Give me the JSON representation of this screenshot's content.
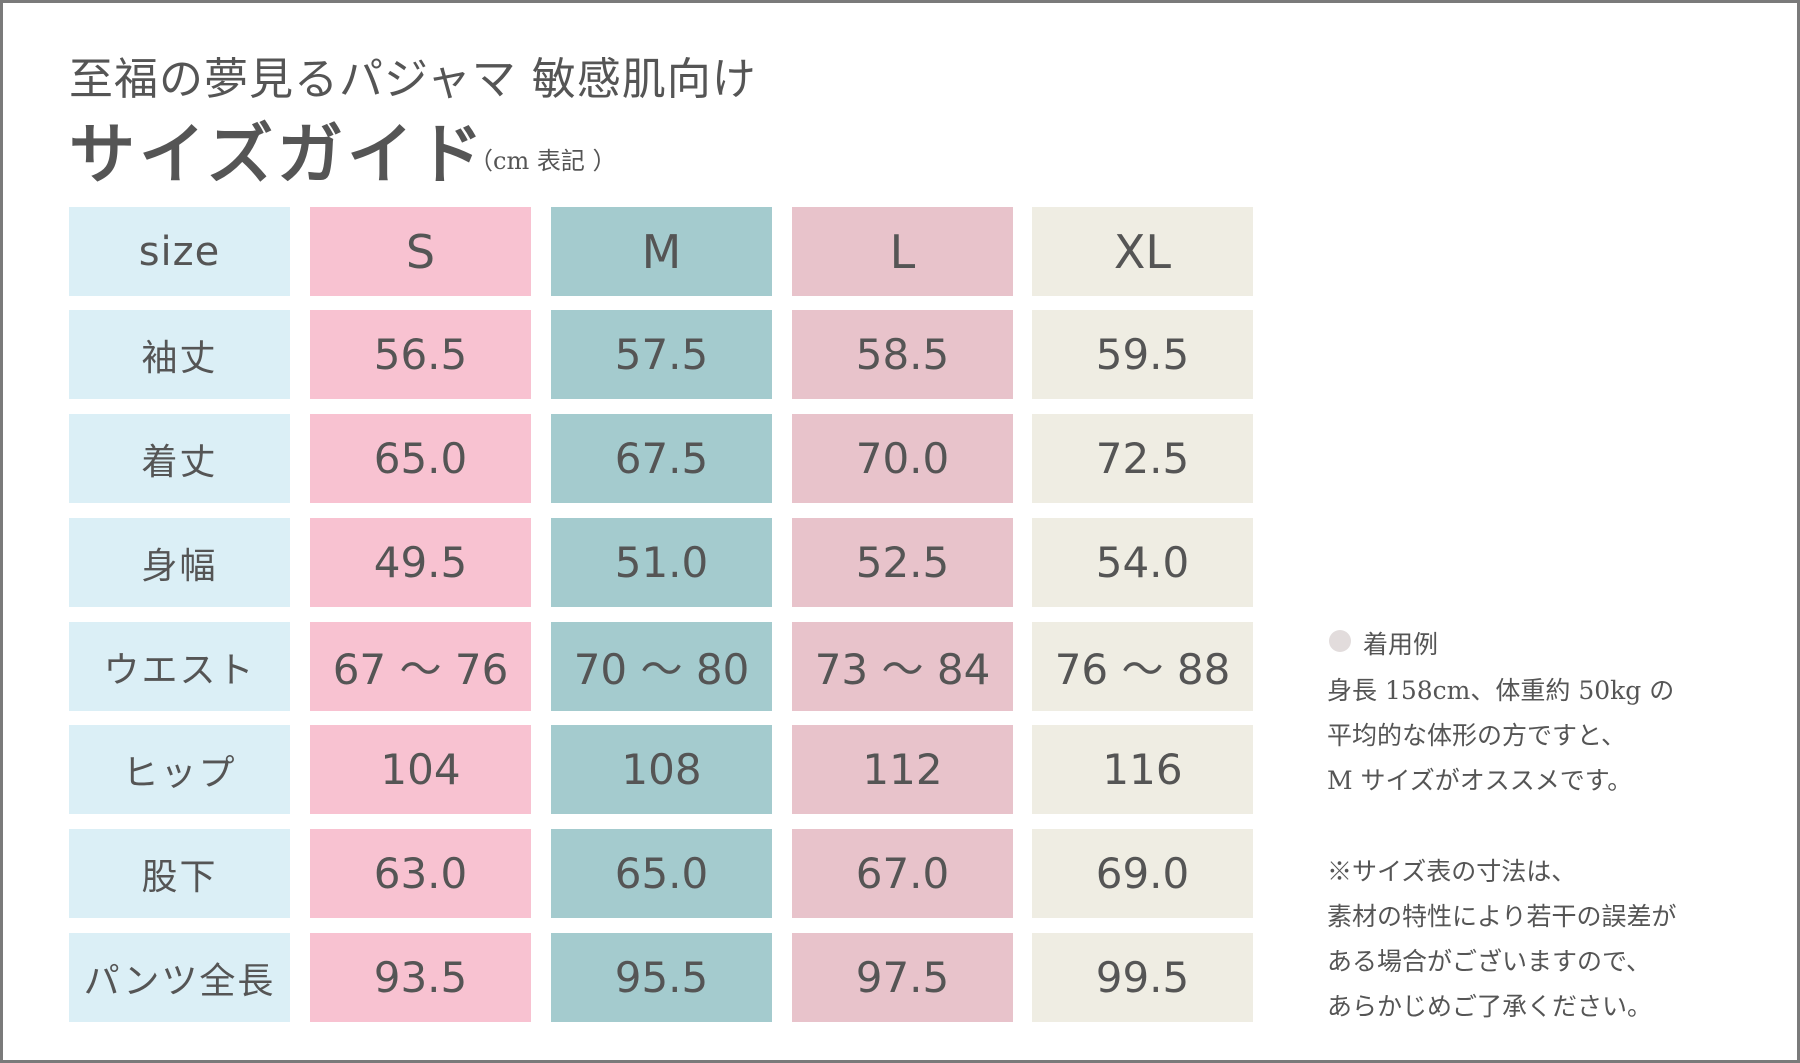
{
  "header": {
    "subtitle": "至福の夢見るパジャマ 敏感肌向け",
    "title": "サイズガイド",
    "unit_note": "（cm 表記 ）"
  },
  "table": {
    "columns": [
      "size",
      "S",
      "M",
      "L",
      "XL"
    ],
    "rows": [
      {
        "label": "袖丈",
        "values": [
          "56.5",
          "57.5",
          "58.5",
          "59.5"
        ]
      },
      {
        "label": "着丈",
        "values": [
          "65.0",
          "67.5",
          "70.0",
          "72.5"
        ]
      },
      {
        "label": "身幅",
        "values": [
          "49.5",
          "51.0",
          "52.5",
          "54.0"
        ]
      },
      {
        "label": "ウエスト",
        "values": [
          "67 ～ 76",
          "70 ～ 80",
          "73 ～ 84",
          "76 ～ 88"
        ]
      },
      {
        "label": "ヒップ",
        "values": [
          "104",
          "108",
          "112",
          "116"
        ]
      },
      {
        "label": "股下",
        "values": [
          "63.0",
          "65.0",
          "67.0",
          "69.0"
        ]
      },
      {
        "label": "パンツ全長",
        "values": [
          "93.5",
          "95.5",
          "97.5",
          "99.5"
        ]
      }
    ],
    "colors": {
      "label": "#dbeff6",
      "S": "#f8c2d1",
      "M": "#a4cbce",
      "L": "#e8c3cb",
      "XL": "#efede3"
    }
  },
  "side_note": {
    "example_heading": "着用例",
    "example_lines": [
      "身長 158cm、体重約 50kg の",
      "平均的な体形の方ですと、",
      "M サイズがオススメです。"
    ],
    "caution_lines": [
      "※サイズ表の寸法は、",
      "素材の特性により若干の誤差が",
      "ある場合がございますので、",
      "あらかじめご了承ください。"
    ]
  }
}
